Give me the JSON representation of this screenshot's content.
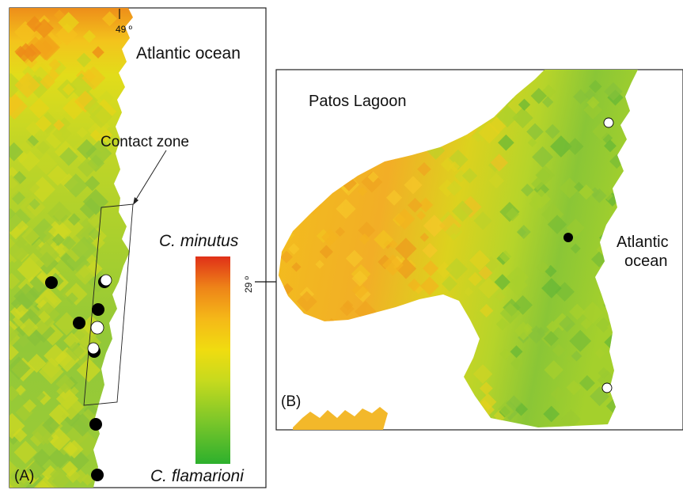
{
  "panel_a": {
    "label": "(A)",
    "ocean_label": "Atlantic ocean",
    "contact_zone_label": "Contact zone",
    "latitude_tick": "49 º"
  },
  "panel_b": {
    "label": "(B)",
    "lagoon_label": "Patos Lagoon",
    "ocean_label_line1": "Atlantic",
    "ocean_label_line2": "ocean"
  },
  "axis": {
    "latitude_tick": "29 º"
  },
  "legend": {
    "top_label": "C. minutus",
    "bottom_label": "C. flamarioni",
    "colors": [
      "#2db02d",
      "#7ac62a",
      "#c6da1e",
      "#f0dc10",
      "#f5b818",
      "#ee8418",
      "#e03018"
    ]
  },
  "colors": {
    "panel_a_north": "#ee9a1a",
    "panel_a_mid": "#b8d42a",
    "panel_a_south": "#8cc83a",
    "panel_b_lagoon": "#f2b628",
    "panel_b_coast": "#9ccc2e",
    "marker_black": "#000000",
    "marker_white": "#ffffff"
  }
}
